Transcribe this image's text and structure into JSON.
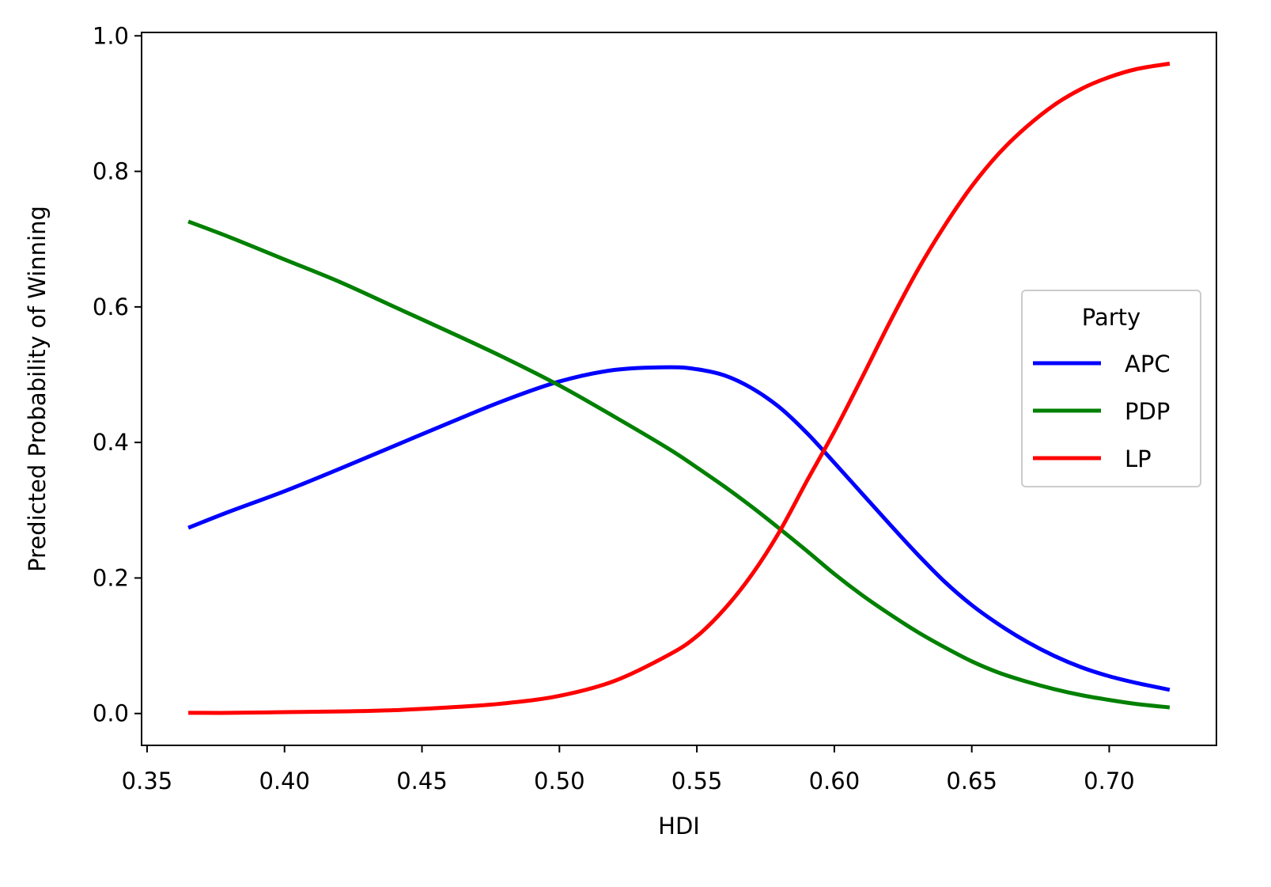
{
  "chart_data": {
    "type": "line",
    "title": "",
    "xlabel": "HDI",
    "ylabel": "Predicted Probability of Winning",
    "xlim": [
      0.348,
      0.739
    ],
    "ylim": [
      -0.047,
      1.005
    ],
    "x_ticks": [
      0.35,
      0.4,
      0.45,
      0.5,
      0.55,
      0.6,
      0.65,
      0.7
    ],
    "x_tick_labels": [
      "0.35",
      "0.40",
      "0.45",
      "0.50",
      "0.55",
      "0.60",
      "0.65",
      "0.70"
    ],
    "y_ticks": [
      0.0,
      0.2,
      0.4,
      0.6,
      0.8,
      1.0
    ],
    "y_tick_labels": [
      "0.0",
      "0.2",
      "0.4",
      "0.6",
      "0.8",
      "1.0"
    ],
    "grid": false,
    "legend": {
      "title": "Party",
      "placement": "center-right"
    },
    "x": [
      0.365,
      0.38,
      0.4,
      0.42,
      0.44,
      0.46,
      0.48,
      0.5,
      0.52,
      0.54,
      0.55,
      0.56,
      0.57,
      0.58,
      0.59,
      0.6,
      0.61,
      0.62,
      0.63,
      0.64,
      0.65,
      0.66,
      0.67,
      0.68,
      0.69,
      0.7,
      0.71,
      0.722
    ],
    "series": [
      {
        "name": "APC",
        "color": "#0000ff",
        "values": [
          0.274,
          0.298,
          0.328,
          0.361,
          0.395,
          0.429,
          0.462,
          0.49,
          0.507,
          0.511,
          0.508,
          0.499,
          0.48,
          0.452,
          0.414,
          0.37,
          0.325,
          0.28,
          0.236,
          0.195,
          0.16,
          0.131,
          0.106,
          0.085,
          0.068,
          0.055,
          0.045,
          0.035
        ]
      },
      {
        "name": "PDP",
        "color": "#008000",
        "values": [
          0.726,
          0.703,
          0.67,
          0.637,
          0.6,
          0.563,
          0.525,
          0.484,
          0.438,
          0.39,
          0.363,
          0.335,
          0.305,
          0.273,
          0.24,
          0.206,
          0.175,
          0.147,
          0.121,
          0.098,
          0.077,
          0.06,
          0.047,
          0.036,
          0.027,
          0.02,
          0.014,
          0.009
        ]
      },
      {
        "name": "LP",
        "color": "#ff0000",
        "values": [
          0.001,
          0.001,
          0.002,
          0.003,
          0.005,
          0.009,
          0.015,
          0.026,
          0.048,
          0.087,
          0.114,
          0.154,
          0.205,
          0.268,
          0.343,
          0.416,
          0.495,
          0.576,
          0.652,
          0.719,
          0.778,
          0.827,
          0.866,
          0.898,
          0.922,
          0.939,
          0.951,
          0.959
        ]
      }
    ]
  }
}
